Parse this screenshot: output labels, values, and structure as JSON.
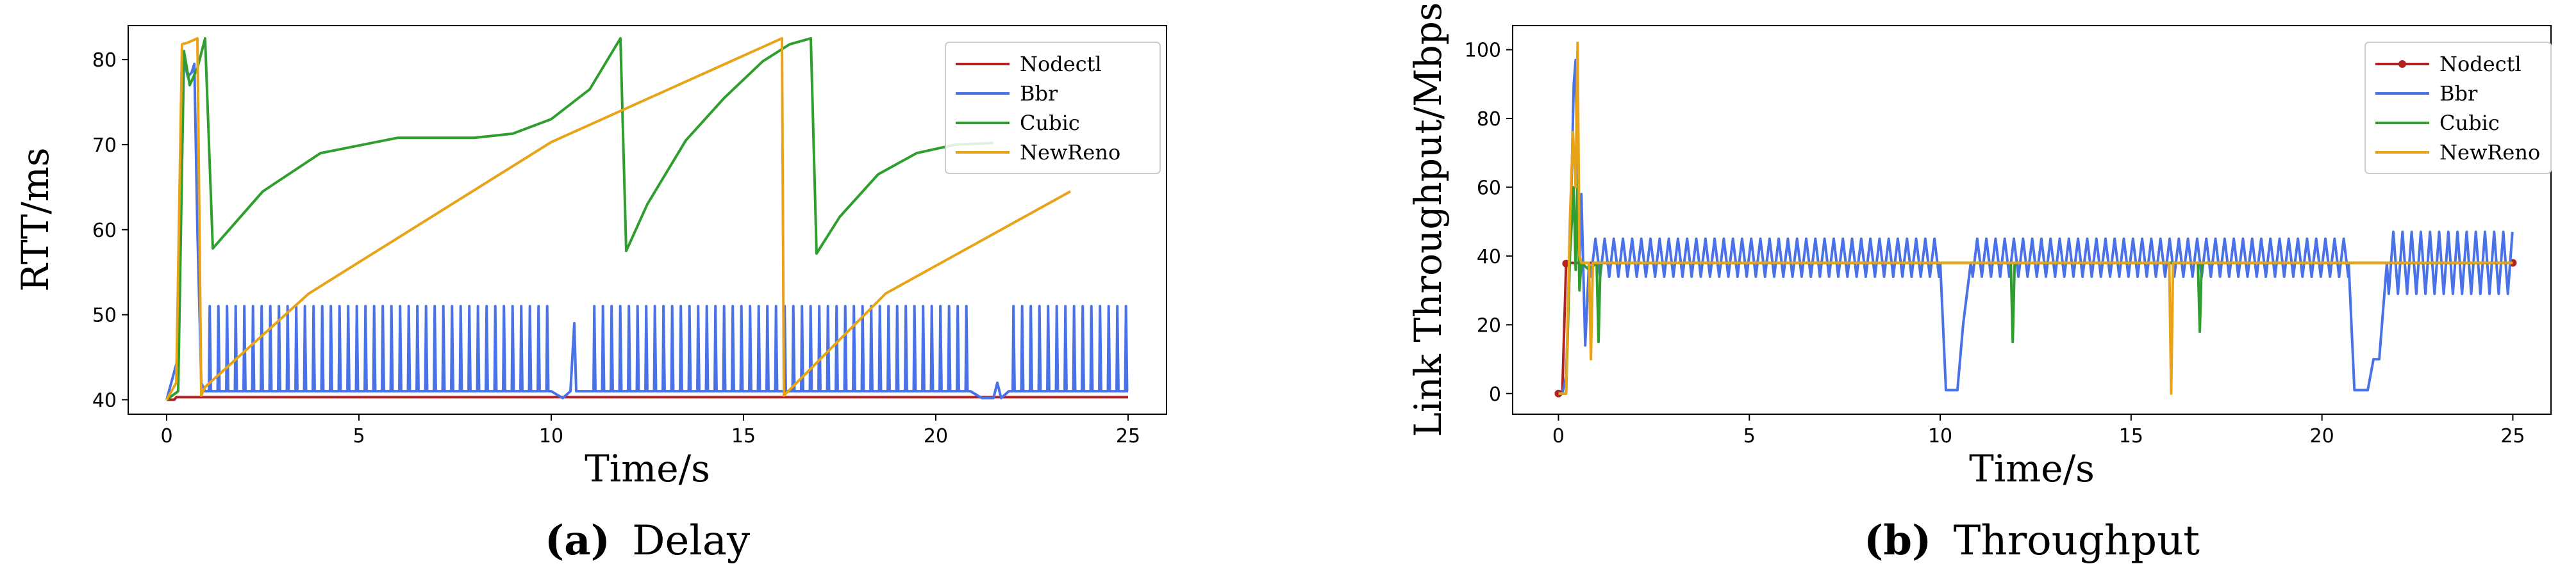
{
  "chart_data": [
    {
      "type": "line",
      "panel": "a",
      "caption_label": "(a)",
      "caption_text": "Delay",
      "xlabel": "Time/s",
      "ylabel": "RTT/ms",
      "xlim": [
        -1.0,
        26.0
      ],
      "ylim": [
        38.3,
        84.0
      ],
      "xticks": [
        0,
        5,
        10,
        15,
        20,
        25
      ],
      "yticks": [
        40,
        50,
        60,
        70,
        80
      ],
      "legend_position": "top-right",
      "series": [
        {
          "name": "Nodectl",
          "color": "#b22222",
          "marker": false,
          "x": [
            0,
            0.2,
            0.25,
            25
          ],
          "y": [
            40.0,
            40.0,
            40.3,
            40.3
          ]
        },
        {
          "name": "Bbr",
          "color": "#4a72e8",
          "marker": false,
          "pattern": "sawtooth",
          "base": 41,
          "peak": 51,
          "x": [
            0,
            0.3,
            0.45,
            0.55,
            0.65,
            0.72,
            0.8,
            0.9,
            1.0,
            10.0,
            10.3,
            10.6,
            11.0,
            20.9,
            21.5,
            21.9,
            25
          ],
          "y": [
            40,
            45,
            80,
            78,
            78.5,
            79.5,
            60,
            42,
            41,
            41,
            40.2,
            41,
            41,
            41,
            40.2,
            41,
            41
          ]
        },
        {
          "name": "Cubic",
          "color": "#2e9e2e",
          "marker": false,
          "x": [
            0,
            0.3,
            0.45,
            0.6,
            0.8,
            1.0,
            1.2,
            2.5,
            4.0,
            6.0,
            8.0,
            9.0,
            10.0,
            11.0,
            11.8,
            11.95,
            12.5,
            13.5,
            14.5,
            15.5,
            16.2,
            16.75,
            16.9,
            17.5,
            18.5,
            19.5,
            20.5,
            21.5
          ],
          "y": [
            40,
            41,
            81,
            77,
            79,
            82.5,
            57.8,
            64.5,
            69.0,
            70.8,
            70.8,
            71.3,
            73.0,
            76.5,
            82.5,
            57.5,
            63.0,
            70.5,
            75.5,
            79.8,
            81.8,
            82.5,
            57.2,
            61.5,
            66.5,
            69.0,
            70.0,
            70.2
          ]
        },
        {
          "name": "NewReno",
          "color": "#e8a317",
          "marker": false,
          "x": [
            0,
            0.25,
            0.4,
            0.55,
            0.8,
            0.9,
            1.0,
            3.7,
            10.0,
            16.0,
            16.05,
            18.7,
            23.5
          ],
          "y": [
            40,
            42,
            81.8,
            82.0,
            82.5,
            40.5,
            41.5,
            52.5,
            70.3,
            82.5,
            40.5,
            52.5,
            64.5
          ]
        }
      ]
    },
    {
      "type": "line",
      "panel": "b",
      "caption_label": "(b)",
      "caption_text": "Throughput",
      "xlabel": "Time/s",
      "ylabel": "Link Throughput/Mbps",
      "xlim": [
        -1.2,
        26.0
      ],
      "ylim": [
        -6.0,
        107.0
      ],
      "xticks": [
        0,
        5,
        10,
        15,
        20,
        25
      ],
      "yticks": [
        0,
        20,
        40,
        60,
        80,
        100
      ],
      "legend_position": "top-right",
      "series": [
        {
          "name": "Nodectl",
          "color": "#b22222",
          "marker": true,
          "x": [
            0,
            0.1,
            0.2,
            0.25,
            25
          ],
          "y": [
            0,
            0,
            37.8,
            38.0,
            38.0
          ]
        },
        {
          "name": "Bbr",
          "color": "#4a72e8",
          "marker": false,
          "pattern": "oscillation",
          "high": 45,
          "low": 34,
          "x": [
            0,
            0.1,
            0.2,
            0.3,
            0.4,
            0.45,
            0.5,
            0.55,
            0.6,
            0.7,
            0.8,
            10.0,
            10.15,
            10.45,
            10.6,
            10.8,
            20.7,
            20.85,
            21.2,
            21.35,
            21.5,
            21.7,
            25
          ],
          "y": [
            0,
            0,
            5,
            40,
            90,
            97,
            60,
            35,
            58,
            14,
            38,
            38,
            1,
            1,
            20,
            38,
            38,
            1,
            1,
            10,
            10,
            38,
            38
          ]
        },
        {
          "name": "Cubic",
          "color": "#2e9e2e",
          "marker": false,
          "x": [
            0,
            0.2,
            0.3,
            0.4,
            0.45,
            0.5,
            0.55,
            0.6,
            0.8,
            1.0,
            1.05,
            1.1,
            11.85,
            11.9,
            11.95,
            16.75,
            16.8,
            16.85,
            25
          ],
          "y": [
            0,
            0,
            40,
            60,
            36,
            62,
            30,
            38,
            36,
            38,
            15,
            38,
            38,
            15,
            38,
            38,
            18,
            38,
            38
          ]
        },
        {
          "name": "NewReno",
          "color": "#e8a317",
          "marker": false,
          "x": [
            0,
            0.2,
            0.3,
            0.38,
            0.45,
            0.5,
            0.55,
            0.6,
            0.8,
            0.85,
            0.9,
            16.0,
            16.05,
            16.1,
            25
          ],
          "y": [
            0,
            0,
            50,
            76,
            60,
            102,
            40,
            38,
            38,
            10,
            38,
            38,
            0,
            38,
            38
          ]
        }
      ]
    }
  ]
}
